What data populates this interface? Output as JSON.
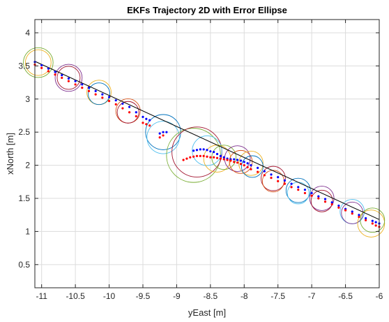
{
  "chart_data": {
    "type": "scatter",
    "title": "EKFs Trajectory 2D with Error Ellipse",
    "xlabel": "yEast [m]",
    "ylabel": "xNorth [m]",
    "xlim": [
      -11.1,
      -6.0
    ],
    "ylim": [
      0.15,
      4.2
    ],
    "xticks": [
      -11,
      -10.5,
      -10,
      -9.5,
      -9,
      -8.5,
      -8,
      -7.5,
      -7,
      -6.5,
      -6
    ],
    "xtick_labels": [
      "-11",
      "-10.5",
      "-10",
      "-9.5",
      "-9",
      "-8.5",
      "-8",
      "-7.5",
      "-7",
      "-6.5",
      "-6"
    ],
    "yticks": [
      0.5,
      1,
      1.5,
      2,
      2.5,
      3,
      3.5,
      4
    ],
    "ytick_labels": [
      "0.5",
      "1",
      "1.5",
      "2",
      "2.5",
      "3",
      "3.5",
      "4"
    ],
    "grid": true,
    "colors": {
      "reference": "#000000",
      "blue_track": "#0000ff",
      "red_track": "#ff0000",
      "ellipse_palette": [
        "#0072BD",
        "#D95319",
        "#EDB120",
        "#7E2F8E",
        "#77AC30",
        "#4DBEEE",
        "#A2142F"
      ]
    },
    "series": [
      {
        "style": "line",
        "color": "#000000",
        "x": [
          -11.1,
          -6.0
        ],
        "y": [
          3.57,
          1.18
        ]
      },
      {
        "style": "dots",
        "color": "#0000ff",
        "x": [
          -11.1,
          -11.0,
          -10.9,
          -10.8,
          -10.7,
          -10.6,
          -10.5,
          -10.4,
          -10.3,
          -10.2,
          -10.1,
          -10.0,
          -9.9,
          -9.8,
          -9.7,
          -9.6,
          -9.5,
          -9.45,
          -9.4,
          -9.25,
          -9.2,
          -9.15,
          -8.75,
          -8.7,
          -8.65,
          -8.6,
          -8.55,
          -8.5,
          -8.45,
          -8.4,
          -8.35,
          -8.3,
          -8.25,
          -8.2,
          -8.15,
          -8.1,
          -8.05,
          -8.0,
          -7.95,
          -7.9,
          -7.8,
          -7.7,
          -7.6,
          -7.5,
          -7.4,
          -7.3,
          -7.2,
          -7.1,
          -7.0,
          -6.9,
          -6.8,
          -6.7,
          -6.6,
          -6.5,
          -6.4,
          -6.3,
          -6.2,
          -6.1,
          -6.05,
          -6.0
        ],
        "y": [
          3.56,
          3.51,
          3.46,
          3.41,
          3.36,
          3.31,
          3.27,
          3.22,
          3.17,
          3.12,
          3.07,
          3.03,
          2.98,
          2.93,
          2.88,
          2.8,
          2.73,
          2.7,
          2.68,
          2.48,
          2.5,
          2.5,
          2.22,
          2.23,
          2.24,
          2.24,
          2.23,
          2.21,
          2.2,
          2.17,
          2.14,
          2.12,
          2.1,
          2.09,
          2.09,
          2.08,
          2.07,
          2.05,
          2.03,
          2.0,
          1.96,
          1.91,
          1.86,
          1.82,
          1.77,
          1.72,
          1.67,
          1.63,
          1.58,
          1.53,
          1.49,
          1.44,
          1.39,
          1.34,
          1.3,
          1.25,
          1.2,
          1.16,
          1.14,
          1.12
        ]
      },
      {
        "style": "dots",
        "color": "#ff0000",
        "x": [
          -11.1,
          -11.0,
          -10.9,
          -10.8,
          -10.7,
          -10.6,
          -10.5,
          -10.4,
          -10.3,
          -10.2,
          -10.1,
          -10.0,
          -9.9,
          -9.8,
          -9.7,
          -9.6,
          -9.5,
          -9.45,
          -9.4,
          -9.25,
          -9.2,
          -8.9,
          -8.85,
          -8.8,
          -8.75,
          -8.7,
          -8.65,
          -8.6,
          -8.55,
          -8.5,
          -8.45,
          -8.4,
          -8.35,
          -8.3,
          -8.25,
          -8.2,
          -8.15,
          -8.1,
          -8.05,
          -8.0,
          -7.95,
          -7.9,
          -7.8,
          -7.7,
          -7.6,
          -7.5,
          -7.4,
          -7.3,
          -7.2,
          -7.1,
          -7.0,
          -6.9,
          -6.8,
          -6.7,
          -6.6,
          -6.5,
          -6.4,
          -6.3,
          -6.2,
          -6.1,
          -6.05,
          -6.0
        ],
        "y": [
          3.52,
          3.47,
          3.42,
          3.37,
          3.32,
          3.27,
          3.22,
          3.17,
          3.12,
          3.07,
          3.02,
          2.97,
          2.92,
          2.86,
          2.8,
          2.74,
          2.64,
          2.62,
          2.6,
          2.42,
          2.45,
          2.08,
          2.1,
          2.12,
          2.13,
          2.14,
          2.14,
          2.14,
          2.13,
          2.12,
          2.12,
          2.11,
          2.1,
          2.09,
          2.08,
          2.07,
          2.05,
          2.04,
          2.02,
          2.0,
          1.97,
          1.94,
          1.9,
          1.85,
          1.81,
          1.76,
          1.72,
          1.67,
          1.63,
          1.58,
          1.54,
          1.5,
          1.45,
          1.41,
          1.36,
          1.32,
          1.27,
          1.22,
          1.17,
          1.12,
          1.09,
          1.07
        ]
      }
    ],
    "ellipses": [
      {
        "x": -11.05,
        "y": 3.55,
        "r": 0.22,
        "color": "#77AC30"
      },
      {
        "x": -11.05,
        "y": 3.55,
        "r": 0.19,
        "color": "#EDB120"
      },
      {
        "x": -10.6,
        "y": 3.32,
        "r": 0.2,
        "color": "#7E2F8E"
      },
      {
        "x": -10.6,
        "y": 3.32,
        "r": 0.17,
        "color": "#A2142F"
      },
      {
        "x": -10.15,
        "y": 3.1,
        "r": 0.18,
        "color": "#EDB120"
      },
      {
        "x": -10.15,
        "y": 3.08,
        "r": 0.16,
        "color": "#0072BD"
      },
      {
        "x": -9.72,
        "y": 2.82,
        "r": 0.18,
        "color": "#D95319"
      },
      {
        "x": -9.72,
        "y": 2.8,
        "r": 0.16,
        "color": "#A2142F"
      },
      {
        "x": -9.2,
        "y": 2.5,
        "r": 0.26,
        "color": "#0072BD"
      },
      {
        "x": -9.2,
        "y": 2.42,
        "r": 0.24,
        "color": "#4DBEEE"
      },
      {
        "x": -8.75,
        "y": 2.15,
        "r": 0.4,
        "color": "#77AC30"
      },
      {
        "x": -8.7,
        "y": 2.2,
        "r": 0.37,
        "color": "#A2142F"
      },
      {
        "x": -8.55,
        "y": 2.22,
        "r": 0.22,
        "color": "#4DBEEE"
      },
      {
        "x": -8.4,
        "y": 2.1,
        "r": 0.2,
        "color": "#EDB120"
      },
      {
        "x": -8.3,
        "y": 2.12,
        "r": 0.18,
        "color": "#77AC30"
      },
      {
        "x": -8.1,
        "y": 2.1,
        "r": 0.19,
        "color": "#7E2F8E"
      },
      {
        "x": -8.05,
        "y": 2.05,
        "r": 0.17,
        "color": "#D95319"
      },
      {
        "x": -7.9,
        "y": 2.03,
        "r": 0.18,
        "color": "#EDB120"
      },
      {
        "x": -7.88,
        "y": 1.98,
        "r": 0.16,
        "color": "#0072BD"
      },
      {
        "x": -7.57,
        "y": 1.8,
        "r": 0.18,
        "color": "#A2142F"
      },
      {
        "x": -7.57,
        "y": 1.76,
        "r": 0.16,
        "color": "#D95319"
      },
      {
        "x": -7.2,
        "y": 1.62,
        "r": 0.18,
        "color": "#0072BD"
      },
      {
        "x": -7.2,
        "y": 1.58,
        "r": 0.16,
        "color": "#4DBEEE"
      },
      {
        "x": -6.85,
        "y": 1.5,
        "r": 0.18,
        "color": "#7E2F8E"
      },
      {
        "x": -6.85,
        "y": 1.46,
        "r": 0.16,
        "color": "#A2142F"
      },
      {
        "x": -6.4,
        "y": 1.3,
        "r": 0.18,
        "color": "#4DBEEE"
      },
      {
        "x": -6.4,
        "y": 1.28,
        "r": 0.16,
        "color": "#7E2F8E"
      },
      {
        "x": -6.12,
        "y": 1.12,
        "r": 0.2,
        "color": "#EDB120"
      },
      {
        "x": -6.1,
        "y": 1.17,
        "r": 0.18,
        "color": "#77AC30"
      }
    ]
  }
}
